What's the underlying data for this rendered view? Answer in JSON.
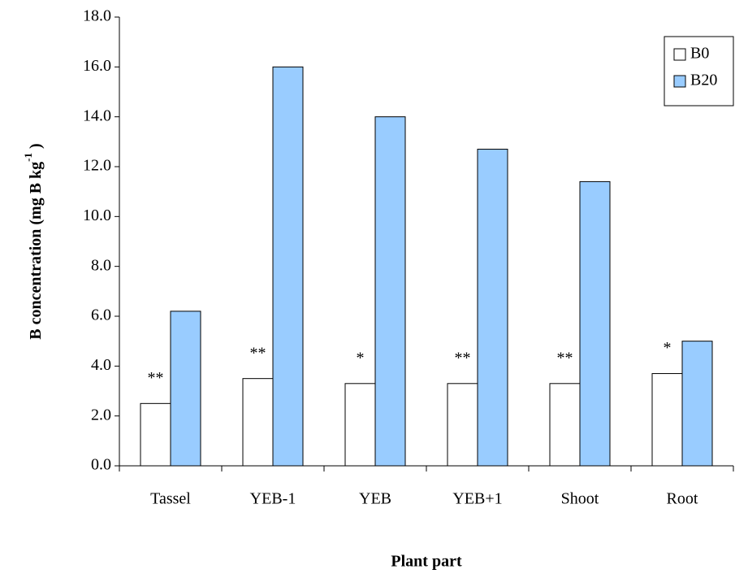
{
  "chart_data": {
    "type": "bar",
    "ylabel": "B concentration (mg B kg",
    "ylabel_sup": "-1",
    "ylabel_end": " )",
    "xlabel": "Plant part",
    "categories": [
      "Tassel",
      "YEB-1",
      "YEB",
      "YEB+1",
      "Shoot",
      "Root"
    ],
    "series": [
      {
        "name": "B0",
        "color": "#ffffff",
        "values": [
          2.5,
          3.5,
          3.3,
          3.3,
          3.3,
          3.7
        ]
      },
      {
        "name": "B20",
        "color": "#99ccff",
        "values": [
          6.2,
          16.0,
          14.0,
          12.7,
          11.4,
          5.0
        ]
      }
    ],
    "annotations": [
      "**",
      "**",
      "*",
      "**",
      "**",
      "*"
    ],
    "ylim": [
      0,
      18
    ],
    "yticks": [
      {
        "value": 0,
        "label": "0.0"
      },
      {
        "value": 2,
        "label": "2.0"
      },
      {
        "value": 4,
        "label": "4.0"
      },
      {
        "value": 6,
        "label": "6.0"
      },
      {
        "value": 8,
        "label": "8.0"
      },
      {
        "value": 10,
        "label": "10.0"
      },
      {
        "value": 12,
        "label": "12.0"
      },
      {
        "value": 14,
        "label": "14.0"
      },
      {
        "value": 16,
        "label": "16.0"
      },
      {
        "value": 18,
        "label": "18.0"
      }
    ],
    "grid": false,
    "legend": "top-right"
  }
}
